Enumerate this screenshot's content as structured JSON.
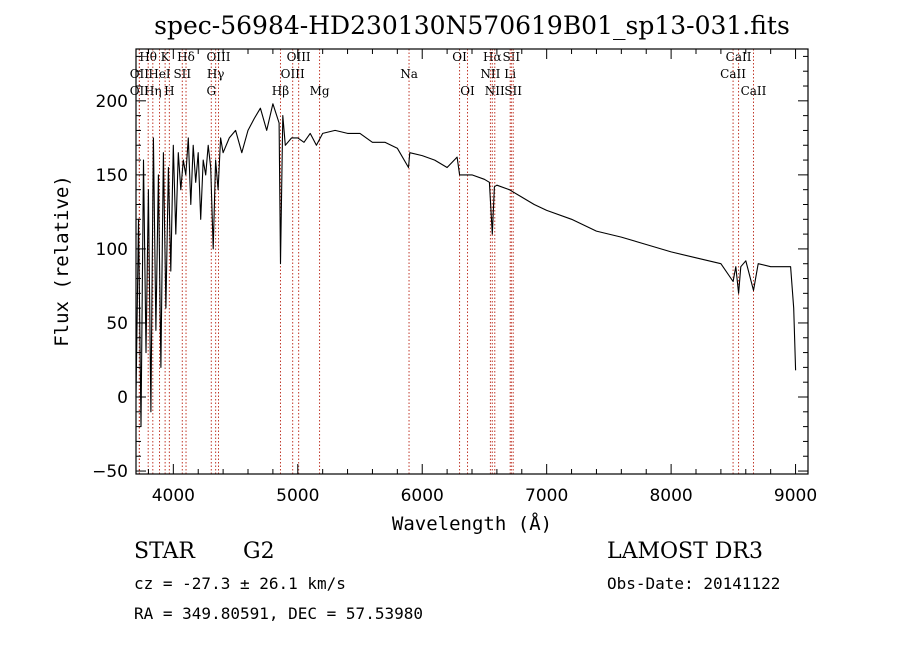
{
  "chart_data": {
    "type": "line",
    "title": "spec-56984-HD230130N570619B01_sp13-031.fits",
    "xlabel": "Wavelength (Å)",
    "ylabel": "Flux (relative)",
    "xlim": [
      3700,
      9100
    ],
    "ylim": [
      -52,
      235
    ],
    "xticks": [
      4000,
      5000,
      6000,
      7000,
      8000,
      9000
    ],
    "yticks": [
      -50,
      0,
      50,
      100,
      150,
      200
    ],
    "series": [
      {
        "name": "flux",
        "x": [
          3700,
          3720,
          3740,
          3760,
          3780,
          3800,
          3820,
          3840,
          3860,
          3880,
          3900,
          3920,
          3940,
          3960,
          3980,
          4000,
          4020,
          4040,
          4060,
          4080,
          4100,
          4120,
          4140,
          4160,
          4180,
          4200,
          4220,
          4240,
          4260,
          4280,
          4300,
          4320,
          4340,
          4360,
          4380,
          4400,
          4450,
          4500,
          4550,
          4600,
          4650,
          4700,
          4750,
          4800,
          4850,
          4861,
          4880,
          4900,
          4950,
          5000,
          5050,
          5100,
          5150,
          5200,
          5300,
          5400,
          5500,
          5600,
          5700,
          5800,
          5890,
          5900,
          6000,
          6100,
          6200,
          6280,
          6300,
          6400,
          6500,
          6540,
          6563,
          6580,
          6600,
          6700,
          6800,
          6900,
          7000,
          7200,
          7400,
          7600,
          7800,
          8000,
          8200,
          8400,
          8498,
          8520,
          8542,
          8560,
          8600,
          8662,
          8700,
          8800,
          8900,
          8960,
          8985,
          9000
        ],
        "y": [
          0,
          120,
          -20,
          160,
          30,
          140,
          -10,
          175,
          45,
          150,
          20,
          165,
          60,
          155,
          85,
          170,
          110,
          165,
          140,
          160,
          150,
          175,
          130,
          170,
          145,
          165,
          120,
          160,
          150,
          170,
          155,
          100,
          160,
          140,
          175,
          165,
          175,
          180,
          165,
          180,
          188,
          195,
          180,
          198,
          185,
          90,
          190,
          170,
          175,
          175,
          172,
          178,
          170,
          178,
          180,
          178,
          178,
          172,
          172,
          168,
          155,
          165,
          163,
          160,
          155,
          162,
          150,
          150,
          147,
          145,
          110,
          142,
          143,
          140,
          135,
          130,
          126,
          120,
          112,
          108,
          103,
          98,
          94,
          90,
          78,
          88,
          70,
          88,
          92,
          72,
          90,
          88,
          88,
          88,
          60,
          18
        ]
      }
    ],
    "lines": [
      {
        "label": "Hθ",
        "x": 3798,
        "row": 1
      },
      {
        "label": "OII",
        "x": 3727,
        "row": 2
      },
      {
        "label": "OII",
        "x": 3727,
        "row": 3
      },
      {
        "label": "Hη",
        "x": 3835,
        "row": 3
      },
      {
        "label": "K",
        "x": 3934,
        "row": 1
      },
      {
        "label": "HeI",
        "x": 3889,
        "row": 2
      },
      {
        "label": "H",
        "x": 3968,
        "row": 3
      },
      {
        "label": "Hδ",
        "x": 4102,
        "row": 1
      },
      {
        "label": "SII",
        "x": 4072,
        "row": 2
      },
      {
        "label": "OIII",
        "x": 4363,
        "row": 1
      },
      {
        "label": "Hγ",
        "x": 4340,
        "row": 2
      },
      {
        "label": "G",
        "x": 4305,
        "row": 3
      },
      {
        "label": "Hβ",
        "x": 4861,
        "row": 3
      },
      {
        "label": "OIII",
        "x": 4959,
        "row": 2
      },
      {
        "label": "OIII",
        "x": 5007,
        "row": 1
      },
      {
        "label": "Mg",
        "x": 5175,
        "row": 3
      },
      {
        "label": "Na",
        "x": 5894,
        "row": 2
      },
      {
        "label": "OI",
        "x": 6300,
        "row": 1
      },
      {
        "label": "OI",
        "x": 6364,
        "row": 3
      },
      {
        "label": "Hα",
        "x": 6563,
        "row": 1
      },
      {
        "label": "NII",
        "x": 6548,
        "row": 2
      },
      {
        "label": "NII",
        "x": 6583,
        "row": 3
      },
      {
        "label": "SII",
        "x": 6716,
        "row": 1
      },
      {
        "label": "Li",
        "x": 6707,
        "row": 2
      },
      {
        "label": "SII",
        "x": 6731,
        "row": 3
      },
      {
        "label": "CaII",
        "x": 8542,
        "row": 1
      },
      {
        "label": "CaII",
        "x": 8498,
        "row": 2
      },
      {
        "label": "CaII",
        "x": 8662,
        "row": 3
      }
    ]
  },
  "info": {
    "object": "STAR",
    "subclass": "G2",
    "survey": "LAMOST DR3",
    "cz": "cz = -27.3 ± 26.1 km/s",
    "obs_date": "Obs-Date: 20141122",
    "coords": "RA = 349.80591, DEC =  57.53980"
  }
}
